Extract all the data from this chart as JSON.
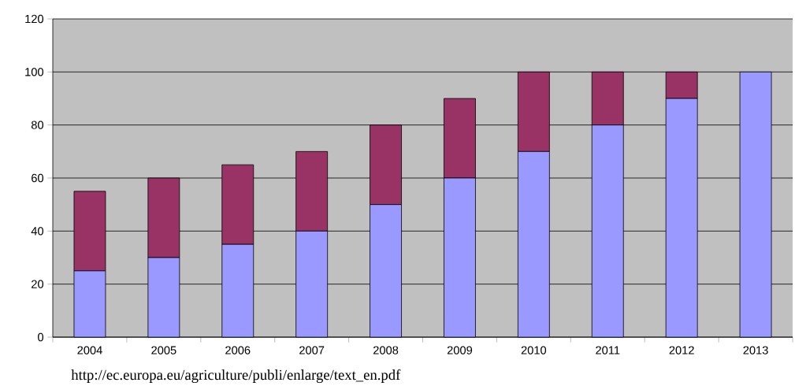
{
  "chart_data": {
    "type": "bar",
    "stacked": true,
    "categories": [
      "2004",
      "2005",
      "2006",
      "2007",
      "2008",
      "2009",
      "2010",
      "2011",
      "2012",
      "2013"
    ],
    "series": [
      {
        "color": "#9999ff",
        "values": [
          25,
          30,
          35,
          40,
          50,
          60,
          70,
          80,
          90,
          100
        ]
      },
      {
        "color": "#993366",
        "values": [
          30,
          30,
          30,
          30,
          30,
          30,
          30,
          20,
          10,
          0
        ]
      }
    ],
    "ylim": [
      0,
      120
    ],
    "yticks": [
      0,
      20,
      40,
      60,
      80,
      100,
      120
    ],
    "grid": "y",
    "annotations": [
      "http://ec.europa.eu/agriculture/publi/enlarge/text_en.pdf"
    ]
  }
}
